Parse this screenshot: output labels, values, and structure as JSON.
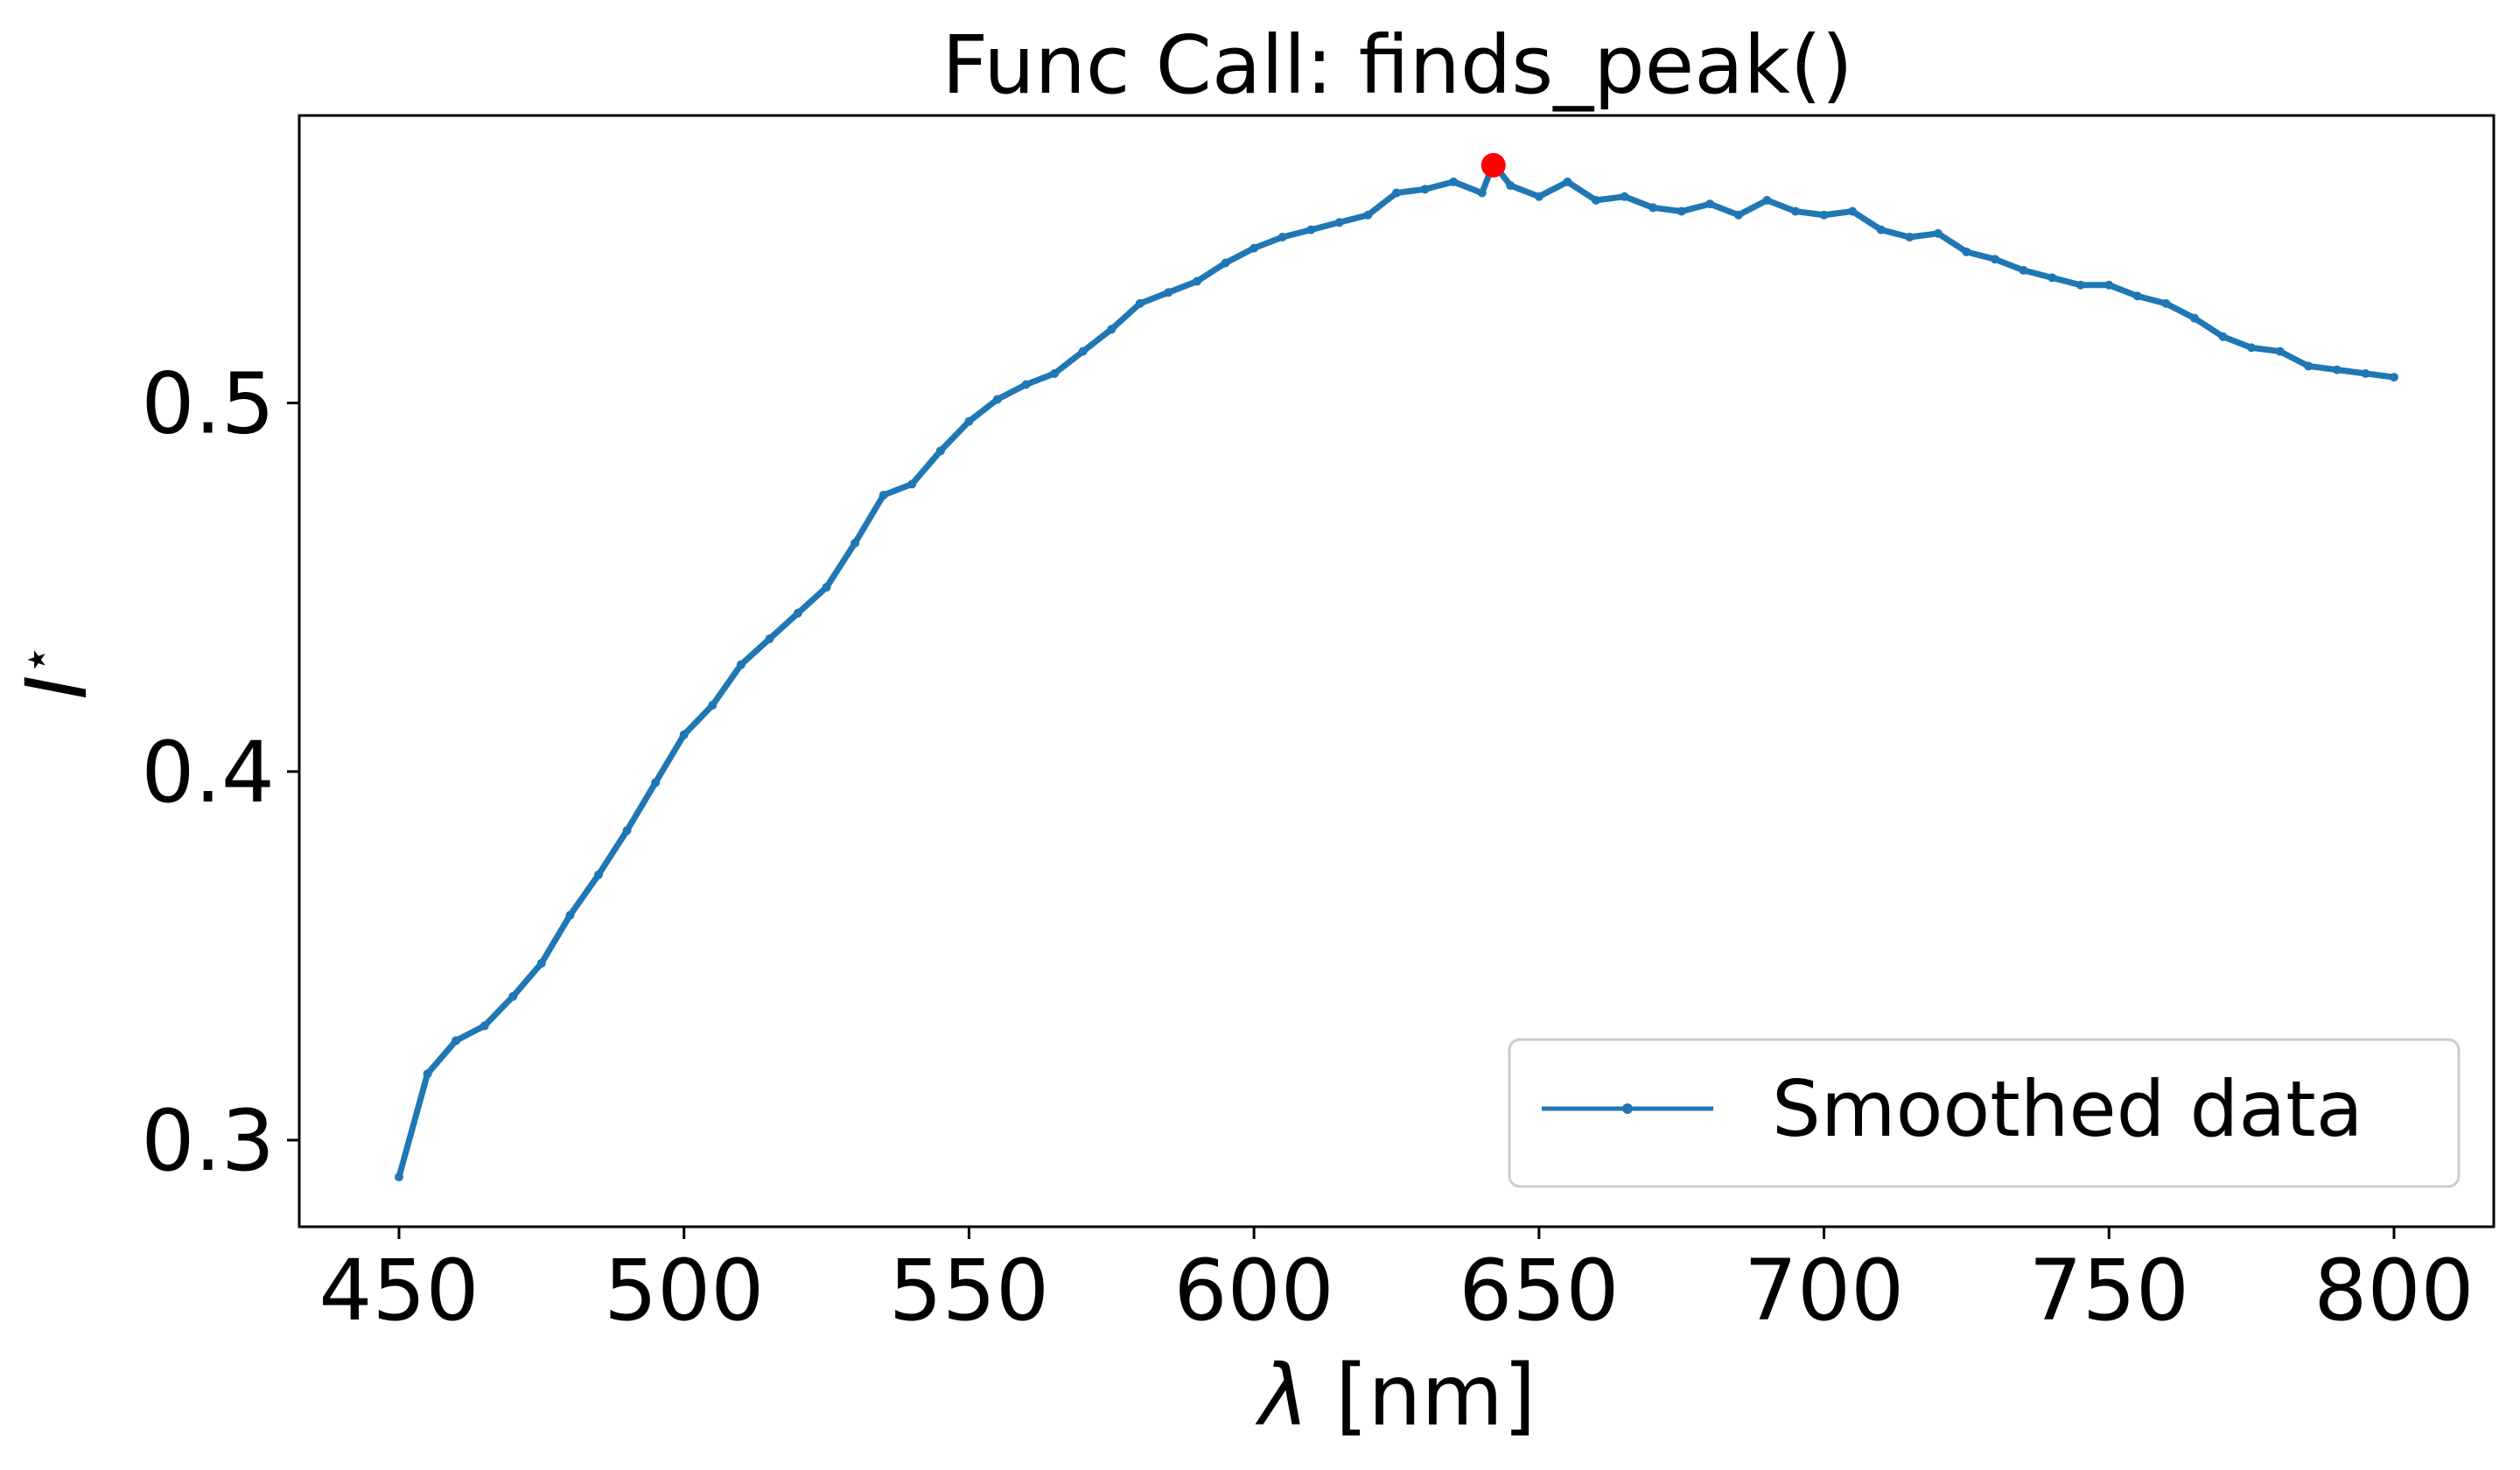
{
  "chart_data": {
    "type": "line",
    "title": "Func Call: finds_peak()",
    "xlabel_prefix": "λ",
    "xlabel_suffix": " [nm]",
    "ylabel_main": "I",
    "ylabel_sup": "⋆",
    "xlim": [
      432.5,
      817.5
    ],
    "ylim": [
      0.2765,
      0.578
    ],
    "x_ticks": [
      450,
      500,
      550,
      600,
      650,
      700,
      750,
      800
    ],
    "x_tick_labels": [
      "450",
      "500",
      "550",
      "600",
      "650",
      "700",
      "750",
      "800"
    ],
    "y_ticks": [
      0.3,
      0.4,
      0.5
    ],
    "y_tick_labels": [
      "0.3",
      "0.4",
      "0.5"
    ],
    "grid": false,
    "legend_position": "bottom-right",
    "series": [
      {
        "name": "Smoothed data",
        "color": "#1f77b4",
        "marker": "dot",
        "x": [
          450,
          455,
          460,
          465,
          470,
          475,
          480,
          485,
          490,
          495,
          500,
          505,
          510,
          515,
          520,
          525,
          530,
          535,
          540,
          545,
          550,
          555,
          560,
          565,
          570,
          575,
          580,
          585,
          590,
          595,
          600,
          605,
          610,
          615,
          620,
          625,
          630,
          635,
          640,
          642,
          645,
          650,
          655,
          660,
          665,
          670,
          675,
          680,
          685,
          690,
          695,
          700,
          705,
          710,
          715,
          720,
          725,
          730,
          735,
          740,
          745,
          750,
          755,
          760,
          765,
          770,
          775,
          780,
          785,
          790,
          795,
          800
        ],
        "y": [
          0.29,
          0.318,
          0.327,
          0.331,
          0.339,
          0.348,
          0.361,
          0.372,
          0.384,
          0.397,
          0.41,
          0.418,
          0.429,
          0.436,
          0.443,
          0.45,
          0.462,
          0.475,
          0.478,
          0.487,
          0.495,
          0.501,
          0.505,
          0.508,
          0.514,
          0.52,
          0.527,
          0.53,
          0.533,
          0.538,
          0.542,
          0.545,
          0.547,
          0.549,
          0.551,
          0.557,
          0.558,
          0.56,
          0.557,
          0.565,
          0.559,
          0.556,
          0.56,
          0.555,
          0.556,
          0.553,
          0.552,
          0.554,
          0.551,
          0.555,
          0.552,
          0.551,
          0.552,
          0.547,
          0.545,
          0.546,
          0.541,
          0.539,
          0.536,
          0.534,
          0.532,
          0.532,
          0.529,
          0.527,
          0.523,
          0.518,
          0.515,
          0.514,
          0.51,
          0.509,
          0.508,
          0.507
        ]
      }
    ],
    "peak": {
      "x": 642,
      "y": 0.5645,
      "color": "#ff0000"
    }
  }
}
